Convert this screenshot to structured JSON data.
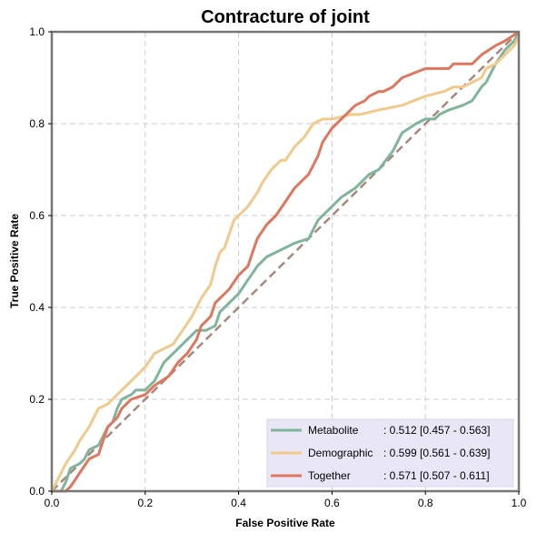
{
  "chart_data": {
    "type": "line",
    "title": "Contracture of joint",
    "xlabel": "False Positive Rate",
    "ylabel": "True Positive Rate",
    "xlim": [
      0,
      1
    ],
    "ylim": [
      0,
      1
    ],
    "xticks": [
      "0.0",
      "0.2",
      "0.4",
      "0.6",
      "0.8",
      "1.0"
    ],
    "yticks": [
      "0.0",
      "0.2",
      "0.4",
      "0.6",
      "0.8",
      "1.0"
    ],
    "grid": true,
    "legend_position": "lower-right",
    "diagonal_color": "#a8877b",
    "legend_bg": "#e9e7f7",
    "series": [
      {
        "name": "Metabolite",
        "auc_text": ": 0.512 [0.457 - 0.563]",
        "color": "#7fb59a",
        "x": [
          0.0,
          0.02,
          0.03,
          0.04,
          0.06,
          0.07,
          0.08,
          0.1,
          0.12,
          0.13,
          0.14,
          0.15,
          0.17,
          0.18,
          0.2,
          0.22,
          0.24,
          0.27,
          0.3,
          0.31,
          0.33,
          0.35,
          0.36,
          0.38,
          0.4,
          0.42,
          0.44,
          0.46,
          0.48,
          0.5,
          0.52,
          0.55,
          0.57,
          0.6,
          0.62,
          0.65,
          0.68,
          0.7,
          0.73,
          0.75,
          0.78,
          0.8,
          0.82,
          0.83,
          0.85,
          0.88,
          0.9,
          0.92,
          0.93,
          0.95,
          0.97,
          0.99,
          1.0
        ],
        "y": [
          0.0,
          0.0,
          0.02,
          0.05,
          0.06,
          0.07,
          0.09,
          0.1,
          0.14,
          0.15,
          0.18,
          0.2,
          0.21,
          0.22,
          0.22,
          0.24,
          0.28,
          0.31,
          0.34,
          0.35,
          0.35,
          0.36,
          0.39,
          0.41,
          0.43,
          0.46,
          0.49,
          0.51,
          0.52,
          0.53,
          0.54,
          0.55,
          0.59,
          0.62,
          0.64,
          0.66,
          0.69,
          0.7,
          0.74,
          0.78,
          0.8,
          0.81,
          0.81,
          0.82,
          0.83,
          0.84,
          0.85,
          0.88,
          0.89,
          0.93,
          0.96,
          0.98,
          1.0
        ]
      },
      {
        "name": "Demographic",
        "auc_text": ": 0.599 [0.561 - 0.639]",
        "color": "#f2c98a",
        "x": [
          0.0,
          0.01,
          0.02,
          0.03,
          0.05,
          0.06,
          0.08,
          0.1,
          0.12,
          0.14,
          0.16,
          0.18,
          0.2,
          0.22,
          0.24,
          0.26,
          0.28,
          0.3,
          0.32,
          0.34,
          0.35,
          0.36,
          0.37,
          0.38,
          0.39,
          0.4,
          0.42,
          0.44,
          0.45,
          0.47,
          0.49,
          0.5,
          0.52,
          0.54,
          0.56,
          0.58,
          0.6,
          0.64,
          0.66,
          0.7,
          0.75,
          0.8,
          0.84,
          0.86,
          0.88,
          0.9,
          0.92,
          0.93,
          0.95,
          0.97,
          0.99,
          1.0
        ],
        "y": [
          0.0,
          0.02,
          0.04,
          0.06,
          0.09,
          0.11,
          0.14,
          0.18,
          0.19,
          0.21,
          0.23,
          0.25,
          0.27,
          0.3,
          0.31,
          0.32,
          0.35,
          0.38,
          0.42,
          0.45,
          0.49,
          0.52,
          0.53,
          0.56,
          0.59,
          0.6,
          0.62,
          0.65,
          0.67,
          0.7,
          0.72,
          0.72,
          0.75,
          0.77,
          0.8,
          0.81,
          0.81,
          0.82,
          0.82,
          0.83,
          0.84,
          0.86,
          0.87,
          0.88,
          0.88,
          0.89,
          0.9,
          0.92,
          0.93,
          0.95,
          0.97,
          0.99
        ]
      },
      {
        "name": "Together",
        "auc_text": ": 0.571 [0.507 - 0.611]",
        "color": "#e0765e",
        "x": [
          0.0,
          0.03,
          0.04,
          0.06,
          0.08,
          0.1,
          0.11,
          0.12,
          0.14,
          0.15,
          0.17,
          0.2,
          0.22,
          0.25,
          0.27,
          0.29,
          0.31,
          0.32,
          0.34,
          0.35,
          0.37,
          0.38,
          0.4,
          0.42,
          0.43,
          0.44,
          0.46,
          0.48,
          0.5,
          0.52,
          0.54,
          0.55,
          0.57,
          0.58,
          0.6,
          0.61,
          0.63,
          0.65,
          0.67,
          0.68,
          0.7,
          0.71,
          0.73,
          0.75,
          0.8,
          0.85,
          0.86,
          0.9,
          0.92,
          0.95,
          0.97,
          1.0
        ],
        "y": [
          0.0,
          0.0,
          0.01,
          0.04,
          0.07,
          0.08,
          0.11,
          0.14,
          0.16,
          0.18,
          0.2,
          0.21,
          0.23,
          0.25,
          0.28,
          0.3,
          0.33,
          0.36,
          0.38,
          0.41,
          0.43,
          0.44,
          0.47,
          0.49,
          0.52,
          0.55,
          0.58,
          0.6,
          0.63,
          0.66,
          0.68,
          0.69,
          0.73,
          0.76,
          0.79,
          0.8,
          0.82,
          0.84,
          0.85,
          0.86,
          0.87,
          0.87,
          0.88,
          0.9,
          0.92,
          0.92,
          0.93,
          0.93,
          0.95,
          0.97,
          0.98,
          1.0
        ]
      }
    ]
  }
}
